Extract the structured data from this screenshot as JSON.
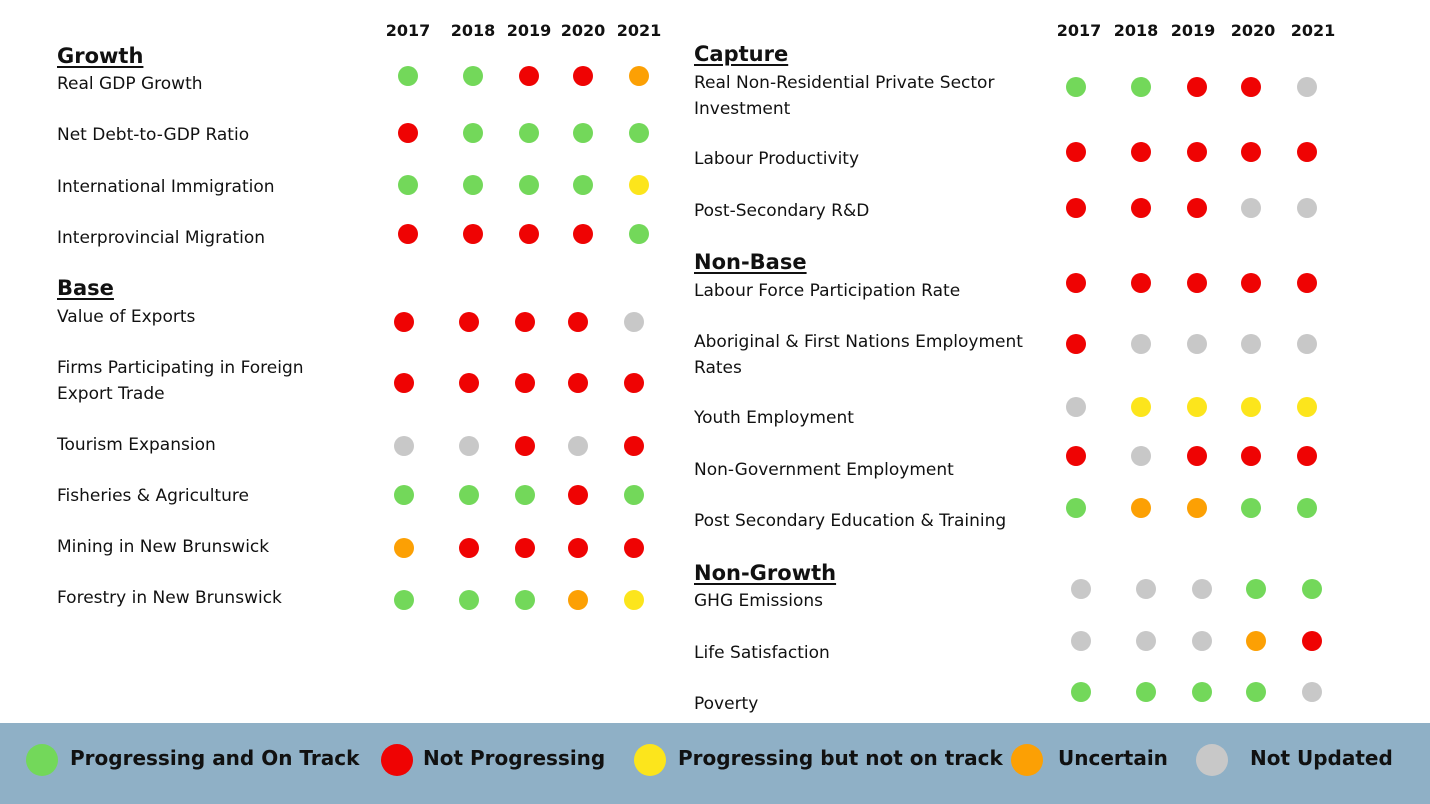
{
  "years": [
    "2017",
    "2018",
    "2019",
    "2020",
    "2021"
  ],
  "status_colors": {
    "green": "#73d85a",
    "red": "#ef0303",
    "yellow": "#fce51c",
    "orange": "#fca004",
    "gray": "#c8c8c8"
  },
  "left": {
    "sections": [
      {
        "title": "Growth",
        "rows": [
          {
            "label": "Real GDP Growth",
            "status": [
              "green",
              "green",
              "red",
              "red",
              "orange"
            ]
          },
          {
            "label": "Net Debt-to-GDP Ratio",
            "status": [
              "red",
              "green",
              "green",
              "green",
              "green"
            ]
          },
          {
            "label": "International Immigration",
            "status": [
              "green",
              "green",
              "green",
              "green",
              "yellow"
            ]
          },
          {
            "label": "Interprovincial Migration",
            "status": [
              "red",
              "red",
              "red",
              "red",
              "green"
            ]
          }
        ]
      },
      {
        "title": "Base",
        "rows": [
          {
            "label": "Value of Exports",
            "status": [
              "red",
              "red",
              "red",
              "red",
              "gray"
            ]
          },
          {
            "label": "Firms Participating in Foreign Export Trade",
            "status": [
              "red",
              "red",
              "red",
              "red",
              "red"
            ]
          },
          {
            "label": "Tourism Expansion",
            "status": [
              "gray",
              "gray",
              "red",
              "gray",
              "red"
            ]
          },
          {
            "label": "Fisheries & Agriculture",
            "status": [
              "green",
              "green",
              "green",
              "red",
              "green"
            ]
          },
          {
            "label": "Mining in New Brunswick",
            "status": [
              "orange",
              "red",
              "red",
              "red",
              "red"
            ]
          },
          {
            "label": "Forestry in New Brunswick",
            "status": [
              "green",
              "green",
              "green",
              "orange",
              "yellow"
            ]
          }
        ]
      }
    ]
  },
  "right": {
    "sections": [
      {
        "title": "Capture",
        "rows": [
          {
            "label": "Real Non-Residential Private Sector Investment",
            "status": [
              "green",
              "green",
              "red",
              "red",
              "gray"
            ]
          },
          {
            "label": "Labour Productivity",
            "status": [
              "red",
              "red",
              "red",
              "red",
              "red"
            ]
          },
          {
            "label": "Post-Secondary R&D",
            "status": [
              "red",
              "red",
              "red",
              "gray",
              "gray"
            ]
          }
        ]
      },
      {
        "title": "Non-Base",
        "rows": [
          {
            "label": "Labour Force Participation Rate",
            "status": [
              "red",
              "red",
              "red",
              "red",
              "red"
            ]
          },
          {
            "label": "Aboriginal & First Nations Employment Rates",
            "status": [
              "red",
              "gray",
              "gray",
              "gray",
              "gray"
            ]
          },
          {
            "label": "Youth Employment",
            "status": [
              "gray",
              "yellow",
              "yellow",
              "yellow",
              "yellow"
            ]
          },
          {
            "label": "Non-Government Employment",
            "status": [
              "red",
              "gray",
              "red",
              "red",
              "red"
            ]
          },
          {
            "label": "Post Secondary Education & Training",
            "status": [
              "green",
              "orange",
              "orange",
              "green",
              "green"
            ]
          }
        ]
      },
      {
        "title": "Non-Growth",
        "rows": [
          {
            "label": "GHG Emissions",
            "status": [
              "gray",
              "gray",
              "gray",
              "green",
              "green"
            ]
          },
          {
            "label": "Life Satisfaction",
            "status": [
              "gray",
              "gray",
              "gray",
              "orange",
              "red"
            ]
          },
          {
            "label": "Poverty",
            "status": [
              "green",
              "green",
              "green",
              "green",
              "gray"
            ]
          }
        ]
      }
    ]
  },
  "legend": [
    {
      "label": "Progressing and On Track",
      "color": "green"
    },
    {
      "label": "Not Progressing",
      "color": "red"
    },
    {
      "label": "Progressing but not on track",
      "color": "yellow"
    },
    {
      "label": "Uncertain",
      "color": "orange"
    },
    {
      "label": "Not Updated",
      "color": "gray"
    }
  ]
}
